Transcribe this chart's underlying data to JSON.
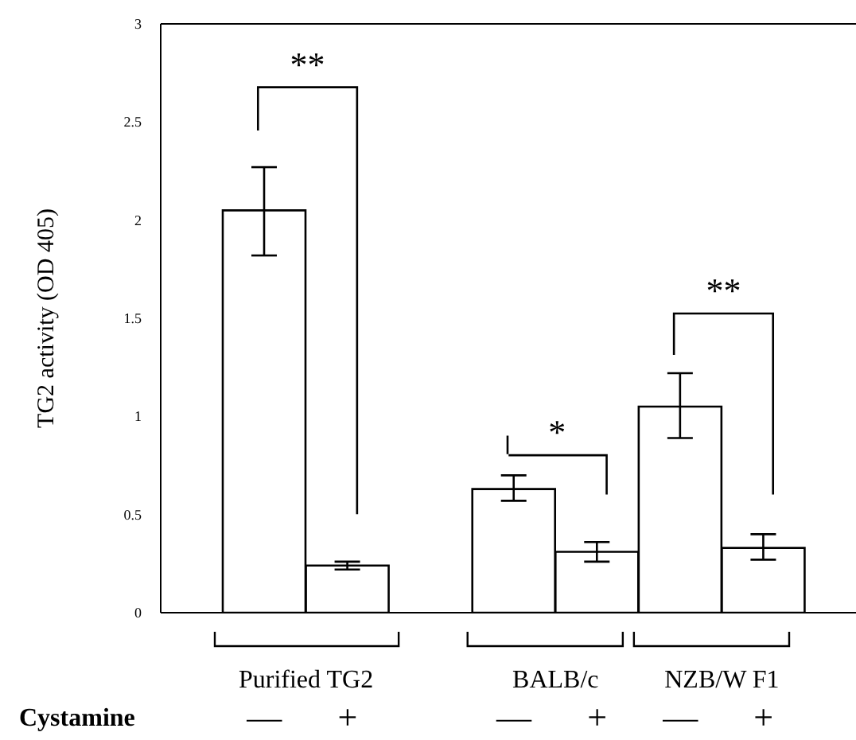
{
  "chart_data": {
    "type": "bar",
    "ylabel": "TG2 activity (OD 405)",
    "categories": [
      "—",
      "+",
      null,
      "—",
      "+",
      "—",
      "+"
    ],
    "values": [
      2.05,
      0.24,
      null,
      0.63,
      0.31,
      1.05,
      0.33
    ],
    "errors": [
      [
        1.82,
        2.27
      ],
      [
        0.22,
        0.26
      ],
      null,
      [
        0.57,
        0.7
      ],
      [
        0.26,
        0.36
      ],
      [
        0.89,
        1.22
      ],
      [
        0.27,
        0.4
      ]
    ],
    "color": "#ffffff",
    "ylim": [
      0,
      3
    ],
    "yticks": [
      0,
      0.5,
      1,
      1.5,
      2,
      2.5,
      3
    ],
    "annotations": [
      "**",
      "*",
      "**",
      "Purified TG2",
      "BALB/c",
      "NZB/W F1",
      "Cystamine"
    ]
  }
}
